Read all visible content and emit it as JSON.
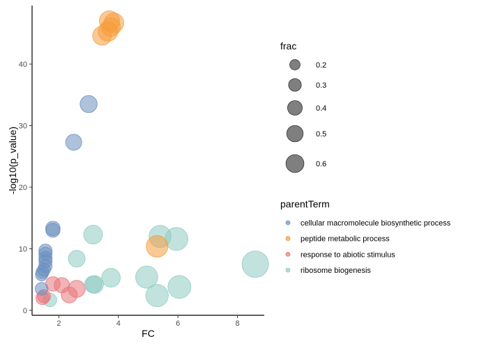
{
  "chart_data": {
    "type": "scatter",
    "xlabel": "FC",
    "ylabel": "-log10(p_value)",
    "xlim": [
      1.1,
      8.9
    ],
    "ylim": [
      -0.8,
      49.5
    ],
    "x_ticks": [
      2,
      4,
      6,
      8
    ],
    "y_ticks": [
      0,
      10,
      20,
      30,
      40
    ],
    "grid": false,
    "size_legend": {
      "title": "frac",
      "values": [
        0.2,
        0.3,
        0.4,
        0.5,
        0.6
      ],
      "labels": [
        "0.2",
        "0.3",
        "0.4",
        "0.5",
        "0.6"
      ]
    },
    "color_legend": {
      "title": "parentTerm"
    },
    "series": [
      {
        "name": "cellular macromolecule biosynthetic process",
        "color": "#6b8fbf",
        "points": [
          {
            "x": 3.0,
            "y": 33.5,
            "frac": 0.25
          },
          {
            "x": 2.5,
            "y": 27.3,
            "frac": 0.22
          },
          {
            "x": 1.8,
            "y": 13.3,
            "frac": 0.18
          },
          {
            "x": 1.8,
            "y": 13.0,
            "frac": 0.17
          },
          {
            "x": 1.55,
            "y": 9.7,
            "frac": 0.15
          },
          {
            "x": 1.55,
            "y": 9.2,
            "frac": 0.15
          },
          {
            "x": 1.55,
            "y": 8.5,
            "frac": 0.15
          },
          {
            "x": 1.55,
            "y": 8.0,
            "frac": 0.15
          },
          {
            "x": 1.55,
            "y": 7.2,
            "frac": 0.15
          },
          {
            "x": 1.5,
            "y": 6.6,
            "frac": 0.14
          },
          {
            "x": 1.45,
            "y": 6.2,
            "frac": 0.14
          },
          {
            "x": 1.42,
            "y": 5.8,
            "frac": 0.13
          },
          {
            "x": 1.42,
            "y": 3.5,
            "frac": 0.14
          }
        ]
      },
      {
        "name": "peptide metabolic process",
        "color": "#f59c3c",
        "points": [
          {
            "x": 3.7,
            "y": 47.0,
            "frac": 0.35
          },
          {
            "x": 3.85,
            "y": 46.7,
            "frac": 0.33
          },
          {
            "x": 3.75,
            "y": 46.0,
            "frac": 0.3
          },
          {
            "x": 3.65,
            "y": 45.3,
            "frac": 0.33
          },
          {
            "x": 3.45,
            "y": 44.6,
            "frac": 0.3
          },
          {
            "x": 5.3,
            "y": 10.4,
            "frac": 0.4
          }
        ]
      },
      {
        "name": "response to abiotic stimulus",
        "color": "#e8767a",
        "points": [
          {
            "x": 1.8,
            "y": 4.3,
            "frac": 0.18
          },
          {
            "x": 2.1,
            "y": 4.1,
            "frac": 0.2
          },
          {
            "x": 2.6,
            "y": 3.5,
            "frac": 0.25
          },
          {
            "x": 2.35,
            "y": 2.5,
            "frac": 0.22
          },
          {
            "x": 1.5,
            "y": 2.3,
            "frac": 0.15
          },
          {
            "x": 1.45,
            "y": 2.0,
            "frac": 0.15
          }
        ]
      },
      {
        "name": "ribosome biogenesis",
        "color": "#8fcac2",
        "points": [
          {
            "x": 8.6,
            "y": 7.5,
            "frac": 0.6
          },
          {
            "x": 5.4,
            "y": 12.0,
            "frac": 0.42
          },
          {
            "x": 5.95,
            "y": 11.6,
            "frac": 0.45
          },
          {
            "x": 3.15,
            "y": 12.3,
            "frac": 0.3
          },
          {
            "x": 2.6,
            "y": 8.4,
            "frac": 0.24
          },
          {
            "x": 3.75,
            "y": 5.3,
            "frac": 0.3
          },
          {
            "x": 4.95,
            "y": 5.4,
            "frac": 0.42
          },
          {
            "x": 3.2,
            "y": 4.2,
            "frac": 0.27
          },
          {
            "x": 3.15,
            "y": 4.2,
            "frac": 0.25
          },
          {
            "x": 6.05,
            "y": 3.8,
            "frac": 0.45
          },
          {
            "x": 5.3,
            "y": 2.4,
            "frac": 0.43
          },
          {
            "x": 1.7,
            "y": 1.7,
            "frac": 0.16
          }
        ]
      }
    ]
  }
}
